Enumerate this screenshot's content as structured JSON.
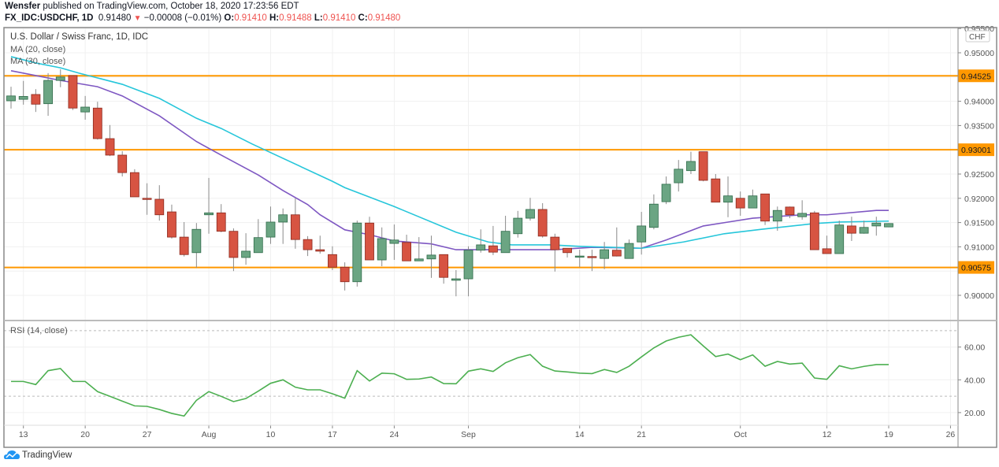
{
  "header": {
    "author": "Wensfer",
    "published": "published on TradingView.com, October 18, 2020 17:23:56 EDT",
    "symbol": "FX_IDC:USDCHF, 1D",
    "last": "0.91480",
    "change": "−0.00008 (−0.01%)",
    "o_label": "O:",
    "o": "0.91410",
    "h_label": "H:",
    "h": "0.91488",
    "l_label": "L:",
    "l": "0.91410",
    "c_label": "C:",
    "c": "0.91480"
  },
  "legend": {
    "title": "U.S. Dollar / Swiss Franc, 1D, IDC",
    "ma20": "MA (20, close)",
    "ma30": "MA (30, close)",
    "rsi": "RSI (14, close)"
  },
  "currency": "CHF",
  "footer": {
    "brand": "TradingView"
  },
  "colors": {
    "up": "#6ba583",
    "down": "#d75442",
    "ma20": "#7e57c2",
    "ma30": "#26c6da",
    "rsi": "#4caf50",
    "level": "#ff9800",
    "brand": "#2196f3"
  },
  "chart_data": [
    {
      "type": "bar",
      "subtype": "candlestick",
      "title": "U.S. Dollar / Swiss Franc, 1D, IDC",
      "ylabel": "CHF",
      "ylim": [
        0.8955,
        0.9555
      ],
      "y_ticks": [
        "0.95500",
        "0.95000",
        "0.94000",
        "0.93500",
        "0.92500",
        "0.92000",
        "0.91500",
        "0.91000",
        "0.90000"
      ],
      "grid": true,
      "x_ticks": [
        {
          "i": 1,
          "label": "13"
        },
        {
          "i": 6,
          "label": "20"
        },
        {
          "i": 11,
          "label": "27"
        },
        {
          "i": 16,
          "label": "Aug"
        },
        {
          "i": 21,
          "label": "10"
        },
        {
          "i": 26,
          "label": "17"
        },
        {
          "i": 31,
          "label": "24"
        },
        {
          "i": 37,
          "label": "Sep"
        },
        {
          "i": 46,
          "label": "14"
        },
        {
          "i": 51,
          "label": "21"
        },
        {
          "i": 59,
          "label": "Oct"
        },
        {
          "i": 66,
          "label": "12"
        },
        {
          "i": 71,
          "label": "19"
        },
        {
          "i": 76,
          "label": "26"
        }
      ],
      "levels": [
        {
          "value": 0.94525,
          "label": "0.94525"
        },
        {
          "value": 0.93001,
          "label": "0.93001"
        },
        {
          "value": 0.90575,
          "label": "0.90575"
        }
      ],
      "ohlc": [
        [
          0.9401,
          0.943,
          0.9385,
          0.9411
        ],
        [
          0.9404,
          0.9442,
          0.9393,
          0.941
        ],
        [
          0.9414,
          0.9425,
          0.9378,
          0.9394
        ],
        [
          0.9395,
          0.9458,
          0.937,
          0.9443
        ],
        [
          0.9443,
          0.9466,
          0.9429,
          0.945
        ],
        [
          0.9453,
          0.9453,
          0.9382,
          0.9386
        ],
        [
          0.9378,
          0.9411,
          0.9362,
          0.9388
        ],
        [
          0.9386,
          0.9399,
          0.9321,
          0.9323
        ],
        [
          0.9323,
          0.9351,
          0.9287,
          0.9289
        ],
        [
          0.9289,
          0.9297,
          0.9245,
          0.9253
        ],
        [
          0.9253,
          0.926,
          0.9203,
          0.9203
        ],
        [
          0.92,
          0.9231,
          0.9166,
          0.9198
        ],
        [
          0.9198,
          0.9227,
          0.9154,
          0.9166
        ],
        [
          0.9172,
          0.9187,
          0.9117,
          0.912
        ],
        [
          0.912,
          0.9151,
          0.908,
          0.9084
        ],
        [
          0.9088,
          0.9149,
          0.9057,
          0.9136
        ],
        [
          0.9166,
          0.9242,
          0.9127,
          0.917
        ],
        [
          0.917,
          0.9188,
          0.913,
          0.9132
        ],
        [
          0.9132,
          0.9138,
          0.905,
          0.9078
        ],
        [
          0.9078,
          0.9128,
          0.9063,
          0.9091
        ],
        [
          0.9088,
          0.9157,
          0.9088,
          0.9119
        ],
        [
          0.912,
          0.9183,
          0.9106,
          0.9151
        ],
        [
          0.9151,
          0.9179,
          0.9106,
          0.9166
        ],
        [
          0.9166,
          0.92,
          0.9096,
          0.9115
        ],
        [
          0.9115,
          0.9122,
          0.9081,
          0.9094
        ],
        [
          0.9094,
          0.9123,
          0.9086,
          0.9091
        ],
        [
          0.9084,
          0.9101,
          0.9052,
          0.9058
        ],
        [
          0.9058,
          0.9068,
          0.901,
          0.9028
        ],
        [
          0.9028,
          0.9154,
          0.9018,
          0.9149
        ],
        [
          0.9149,
          0.9162,
          0.9073,
          0.9073
        ],
        [
          0.9073,
          0.914,
          0.906,
          0.9117
        ],
        [
          0.9107,
          0.9146,
          0.9073,
          0.9114
        ],
        [
          0.9109,
          0.9125,
          0.9071,
          0.9071
        ],
        [
          0.9071,
          0.912,
          0.9071,
          0.9075
        ],
        [
          0.9075,
          0.9123,
          0.9036,
          0.9083
        ],
        [
          0.9084,
          0.9084,
          0.9024,
          0.9037
        ],
        [
          0.9031,
          0.9052,
          0.8998,
          0.9034
        ],
        [
          0.9034,
          0.9101,
          0.8998,
          0.9093
        ],
        [
          0.9093,
          0.9136,
          0.9088,
          0.9104
        ],
        [
          0.9102,
          0.9143,
          0.9083,
          0.9089
        ],
        [
          0.9088,
          0.9164,
          0.9088,
          0.9132
        ],
        [
          0.9127,
          0.9174,
          0.9119,
          0.9159
        ],
        [
          0.9159,
          0.9201,
          0.9154,
          0.9177
        ],
        [
          0.9177,
          0.919,
          0.9119,
          0.9122
        ],
        [
          0.912,
          0.9127,
          0.9049,
          0.9094
        ],
        [
          0.9097,
          0.9097,
          0.9078,
          0.9088
        ],
        [
          0.908,
          0.9094,
          0.9058,
          0.9081
        ],
        [
          0.908,
          0.9094,
          0.905,
          0.9078
        ],
        [
          0.9076,
          0.911,
          0.9054,
          0.9094
        ],
        [
          0.9093,
          0.914,
          0.908,
          0.9081
        ],
        [
          0.9076,
          0.9115,
          0.9076,
          0.9107
        ],
        [
          0.911,
          0.9172,
          0.9084,
          0.9143
        ],
        [
          0.914,
          0.9208,
          0.9136,
          0.9188
        ],
        [
          0.9193,
          0.9245,
          0.9188,
          0.9229
        ],
        [
          0.9232,
          0.9279,
          0.9214,
          0.926
        ],
        [
          0.9257,
          0.9296,
          0.925,
          0.9276
        ],
        [
          0.9296,
          0.9296,
          0.9235,
          0.9237
        ],
        [
          0.924,
          0.925,
          0.9192,
          0.9192
        ],
        [
          0.9192,
          0.9245,
          0.9161,
          0.9205
        ],
        [
          0.92,
          0.9214,
          0.9164,
          0.918
        ],
        [
          0.918,
          0.9218,
          0.918,
          0.9205
        ],
        [
          0.9209,
          0.9209,
          0.9145,
          0.9153
        ],
        [
          0.9153,
          0.9183,
          0.9133,
          0.9175
        ],
        [
          0.9182,
          0.9183,
          0.9159,
          0.9166
        ],
        [
          0.9162,
          0.9196,
          0.9156,
          0.9169
        ],
        [
          0.917,
          0.9174,
          0.9094,
          0.9094
        ],
        [
          0.9096,
          0.9123,
          0.9086,
          0.9086
        ],
        [
          0.9086,
          0.9154,
          0.9086,
          0.9145
        ],
        [
          0.9143,
          0.9162,
          0.9112,
          0.9128
        ],
        [
          0.9128,
          0.9154,
          0.9127,
          0.914
        ],
        [
          0.9143,
          0.9162,
          0.9123,
          0.9149
        ],
        [
          0.9141,
          0.91488,
          0.9141,
          0.9148
        ]
      ],
      "series": [
        {
          "name": "MA (20, close)",
          "points": [
            [
              0,
              0.9463
            ],
            [
              2,
              0.9453
            ],
            [
              4,
              0.9443
            ],
            [
              7,
              0.943
            ],
            [
              9,
              0.9411
            ],
            [
              12,
              0.937
            ],
            [
              15,
              0.9317
            ],
            [
              17,
              0.9289
            ],
            [
              20,
              0.9248
            ],
            [
              22,
              0.9216
            ],
            [
              24,
              0.9187
            ],
            [
              25,
              0.9166
            ],
            [
              27,
              0.9135
            ],
            [
              29,
              0.9125
            ],
            [
              31,
              0.9112
            ],
            [
              34,
              0.9106
            ],
            [
              36,
              0.9094
            ],
            [
              39,
              0.9094
            ],
            [
              44,
              0.9094
            ],
            [
              47,
              0.9099
            ],
            [
              51,
              0.9097
            ],
            [
              53,
              0.9114
            ],
            [
              56,
              0.9143
            ],
            [
              58,
              0.9151
            ],
            [
              60,
              0.9159
            ],
            [
              64,
              0.9166
            ],
            [
              66,
              0.9166
            ],
            [
              70,
              0.9175
            ],
            [
              71,
              0.9175
            ]
          ]
        },
        {
          "name": "MA (30, close)",
          "points": [
            [
              0,
              0.9492
            ],
            [
              2,
              0.9479
            ],
            [
              4,
              0.9469
            ],
            [
              5.5,
              0.9458
            ],
            [
              9,
              0.9435
            ],
            [
              12,
              0.9406
            ],
            [
              15,
              0.9365
            ],
            [
              17,
              0.9344
            ],
            [
              19.5,
              0.9312
            ],
            [
              26,
              0.9235
            ],
            [
              27,
              0.9222
            ],
            [
              31,
              0.9183
            ],
            [
              36,
              0.913
            ],
            [
              38.6,
              0.911
            ],
            [
              40.5,
              0.9104
            ],
            [
              43.7,
              0.9104
            ],
            [
              46,
              0.9101
            ],
            [
              51,
              0.9097
            ],
            [
              54.4,
              0.911
            ],
            [
              57.7,
              0.9127
            ],
            [
              60.7,
              0.9136
            ],
            [
              65,
              0.9148
            ],
            [
              67,
              0.9151
            ],
            [
              71,
              0.9153
            ]
          ]
        }
      ]
    },
    {
      "type": "line",
      "title": "RSI (14, close)",
      "ylim": [
        12.4,
        76.3
      ],
      "y_ticks": [
        "60.00",
        "40.00",
        "20.00"
      ],
      "bands": [
        70,
        30
      ],
      "series": [
        {
          "name": "RSI (14, close)",
          "values": [
            39.0,
            39.0,
            37.1,
            45.6,
            46.9,
            39.0,
            39.0,
            32.8,
            29.9,
            27.0,
            24.1,
            23.8,
            21.9,
            19.5,
            17.9,
            27.5,
            32.8,
            29.9,
            26.7,
            28.6,
            33.1,
            37.9,
            40.0,
            35.5,
            33.9,
            33.9,
            31.5,
            28.8,
            45.6,
            39.3,
            44.1,
            43.7,
            40.3,
            40.5,
            41.7,
            37.7,
            37.6,
            45.3,
            46.7,
            45.1,
            50.4,
            53.5,
            55.4,
            48.3,
            45.4,
            44.8,
            44.1,
            43.8,
            46.3,
            44.5,
            48.3,
            54.0,
            59.5,
            63.7,
            66.0,
            67.5,
            60.7,
            54.2,
            55.7,
            52.3,
            55.2,
            48.3,
            51.2,
            49.6,
            50.2,
            41.1,
            40.3,
            48.6,
            46.7,
            48.2,
            49.3,
            49.3
          ]
        }
      ]
    }
  ]
}
